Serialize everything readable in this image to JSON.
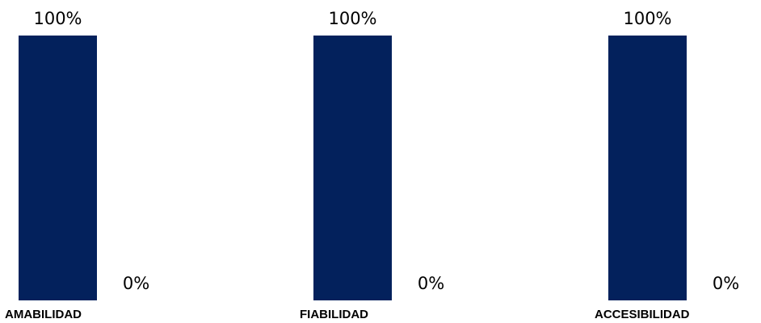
{
  "chart_data": {
    "type": "bar",
    "categories": [
      "AMABILIDAD",
      "FIABILIDAD",
      "ACCESIBILIDAD"
    ],
    "series": [
      {
        "values": [
          100,
          100,
          100
        ],
        "data_labels": [
          "100%",
          "100%",
          "100%"
        ],
        "color": "#03215c"
      },
      {
        "values": [
          0,
          0,
          0
        ],
        "data_labels": [
          "0%",
          "0%",
          "0%"
        ],
        "color": "#03215c"
      }
    ],
    "title": "",
    "xlabel": "",
    "ylabel": "",
    "ylim": [
      0,
      100
    ],
    "grid": false,
    "legend": "none"
  }
}
